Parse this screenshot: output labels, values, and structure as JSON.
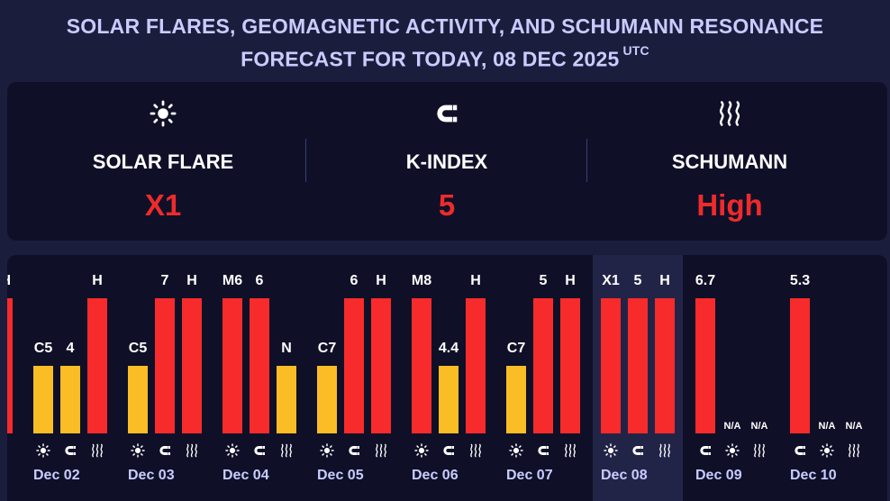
{
  "header": {
    "title_line1": "SOLAR FLARES, GEOMAGNETIC ACTIVITY, AND SCHUMANN RESONANCE",
    "title_line2": "FORECAST FOR TODAY, 08 DEC 2025",
    "title_suffix": "UTC"
  },
  "summary": {
    "solar": {
      "label": "SOLAR FLARE",
      "value": "X1",
      "icon": "sun-icon"
    },
    "kindex": {
      "label": "K-INDEX",
      "value": "5",
      "icon": "magnet-icon"
    },
    "schumann": {
      "label": "SCHUMANN",
      "value": "High",
      "icon": "waves-icon"
    },
    "value_color": "#ee2b2b"
  },
  "colors": {
    "high": "#f72b2b",
    "moderate": "#fbbd26",
    "background": "#0f1028",
    "today_highlight": "#222447"
  },
  "chart_data": {
    "type": "bar",
    "title": "",
    "levels": [
      "low",
      "moderate",
      "high"
    ],
    "days": [
      {
        "date": "Dec 02",
        "solar": {
          "label": "C5",
          "level": "moderate"
        },
        "kindex": {
          "label": "4",
          "level": "moderate"
        },
        "schumann": {
          "label": "H",
          "level": "high"
        }
      },
      {
        "date": "Dec 03",
        "solar": {
          "label": "C5",
          "level": "moderate"
        },
        "kindex": {
          "label": "7",
          "level": "high"
        },
        "schumann": {
          "label": "H",
          "level": "high"
        }
      },
      {
        "date": "Dec 04",
        "solar": {
          "label": "M6",
          "level": "high"
        },
        "kindex": {
          "label": "6",
          "level": "high"
        },
        "schumann": {
          "label": "N",
          "level": "moderate"
        }
      },
      {
        "date": "Dec 05",
        "solar": {
          "label": "C7",
          "level": "moderate"
        },
        "kindex": {
          "label": "6",
          "level": "high"
        },
        "schumann": {
          "label": "H",
          "level": "high"
        }
      },
      {
        "date": "Dec 06",
        "solar": {
          "label": "M8",
          "level": "high"
        },
        "kindex": {
          "label": "4.4",
          "level": "moderate"
        },
        "schumann": {
          "label": "H",
          "level": "high"
        }
      },
      {
        "date": "Dec 07",
        "solar": {
          "label": "C7",
          "level": "moderate"
        },
        "kindex": {
          "label": "5",
          "level": "high"
        },
        "schumann": {
          "label": "H",
          "level": "high"
        }
      },
      {
        "date": "Dec 08",
        "solar": {
          "label": "X1",
          "level": "high"
        },
        "kindex": {
          "label": "5",
          "level": "high"
        },
        "schumann": {
          "label": "H",
          "level": "high"
        },
        "today": true
      },
      {
        "date": "Dec 09",
        "kindex": {
          "label": "6.7",
          "level": "high"
        },
        "solar": {
          "label": "N/A",
          "level": "none"
        },
        "schumann": {
          "label": "N/A",
          "level": "none"
        },
        "order": [
          "kindex",
          "solar",
          "schumann"
        ]
      },
      {
        "date": "Dec 10",
        "kindex": {
          "label": "5.3",
          "level": "high"
        },
        "solar": {
          "label": "N/A",
          "level": "none"
        },
        "schumann": {
          "label": "N/A",
          "level": "none"
        },
        "order": [
          "kindex",
          "solar",
          "schumann"
        ]
      }
    ]
  }
}
